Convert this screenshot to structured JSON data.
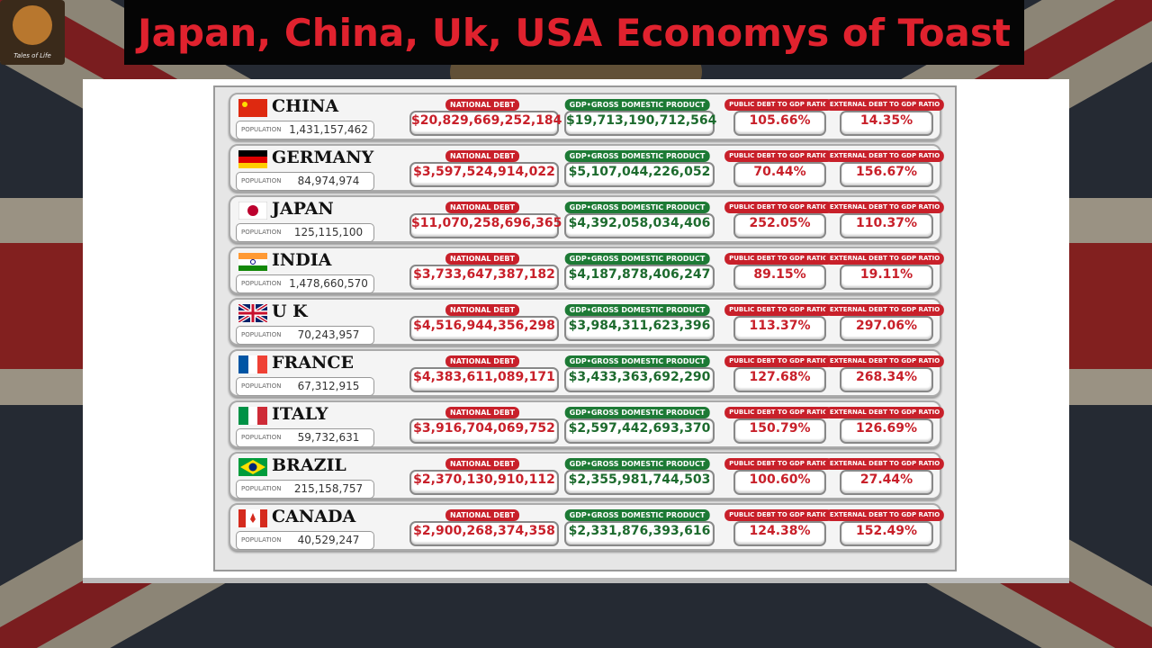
{
  "header": {
    "title": "Japan, China, Uk, USA Economys of Toast",
    "logo": "Tales of Life"
  },
  "labels": {
    "population": "POPULATION",
    "national_debt": "NATIONAL DEBT",
    "gdp": "GDP•GROSS DOMESTIC PRODUCT",
    "public_ratio": "PUBLIC DEBT TO GDP RATIO",
    "external_ratio": "EXTERNAL DEBT TO GDP RATIO"
  },
  "rows": [
    {
      "country": "CHINA",
      "population": "1,431,157,462",
      "national_debt": "$20,829,669,252,184",
      "gdp": "$19,713,190,712,564",
      "public_ratio": "105.66%",
      "external_ratio": "14.35%"
    },
    {
      "country": "GERMANY",
      "population": "84,974,974",
      "national_debt": "$3,597,524,914,022",
      "gdp": "$5,107,044,226,052",
      "public_ratio": "70.44%",
      "external_ratio": "156.67%"
    },
    {
      "country": "JAPAN",
      "population": "125,115,100",
      "national_debt": "$11,070,258,696,365",
      "gdp": "$4,392,058,034,406",
      "public_ratio": "252.05%",
      "external_ratio": "110.37%"
    },
    {
      "country": "INDIA",
      "population": "1,478,660,570",
      "national_debt": "$3,733,647,387,182",
      "gdp": "$4,187,878,406,247",
      "public_ratio": "89.15%",
      "external_ratio": "19.11%"
    },
    {
      "country": "U K",
      "population": "70,243,957",
      "national_debt": "$4,516,944,356,298",
      "gdp": "$3,984,311,623,396",
      "public_ratio": "113.37%",
      "external_ratio": "297.06%"
    },
    {
      "country": "FRANCE",
      "population": "67,312,915",
      "national_debt": "$4,383,611,089,171",
      "gdp": "$3,433,363,692,290",
      "public_ratio": "127.68%",
      "external_ratio": "268.34%"
    },
    {
      "country": "ITALY",
      "population": "59,732,631",
      "national_debt": "$3,916,704,069,752",
      "gdp": "$2,597,442,693,370",
      "public_ratio": "150.79%",
      "external_ratio": "126.69%"
    },
    {
      "country": "BRAZIL",
      "population": "215,158,757",
      "national_debt": "$2,370,130,910,112",
      "gdp": "$2,355,981,744,503",
      "public_ratio": "100.60%",
      "external_ratio": "27.44%"
    },
    {
      "country": "CANADA",
      "population": "40,529,247",
      "national_debt": "$2,900,268,374,358",
      "gdp": "$2,331,876,393,616",
      "public_ratio": "124.38%",
      "external_ratio": "152.49%"
    }
  ]
}
